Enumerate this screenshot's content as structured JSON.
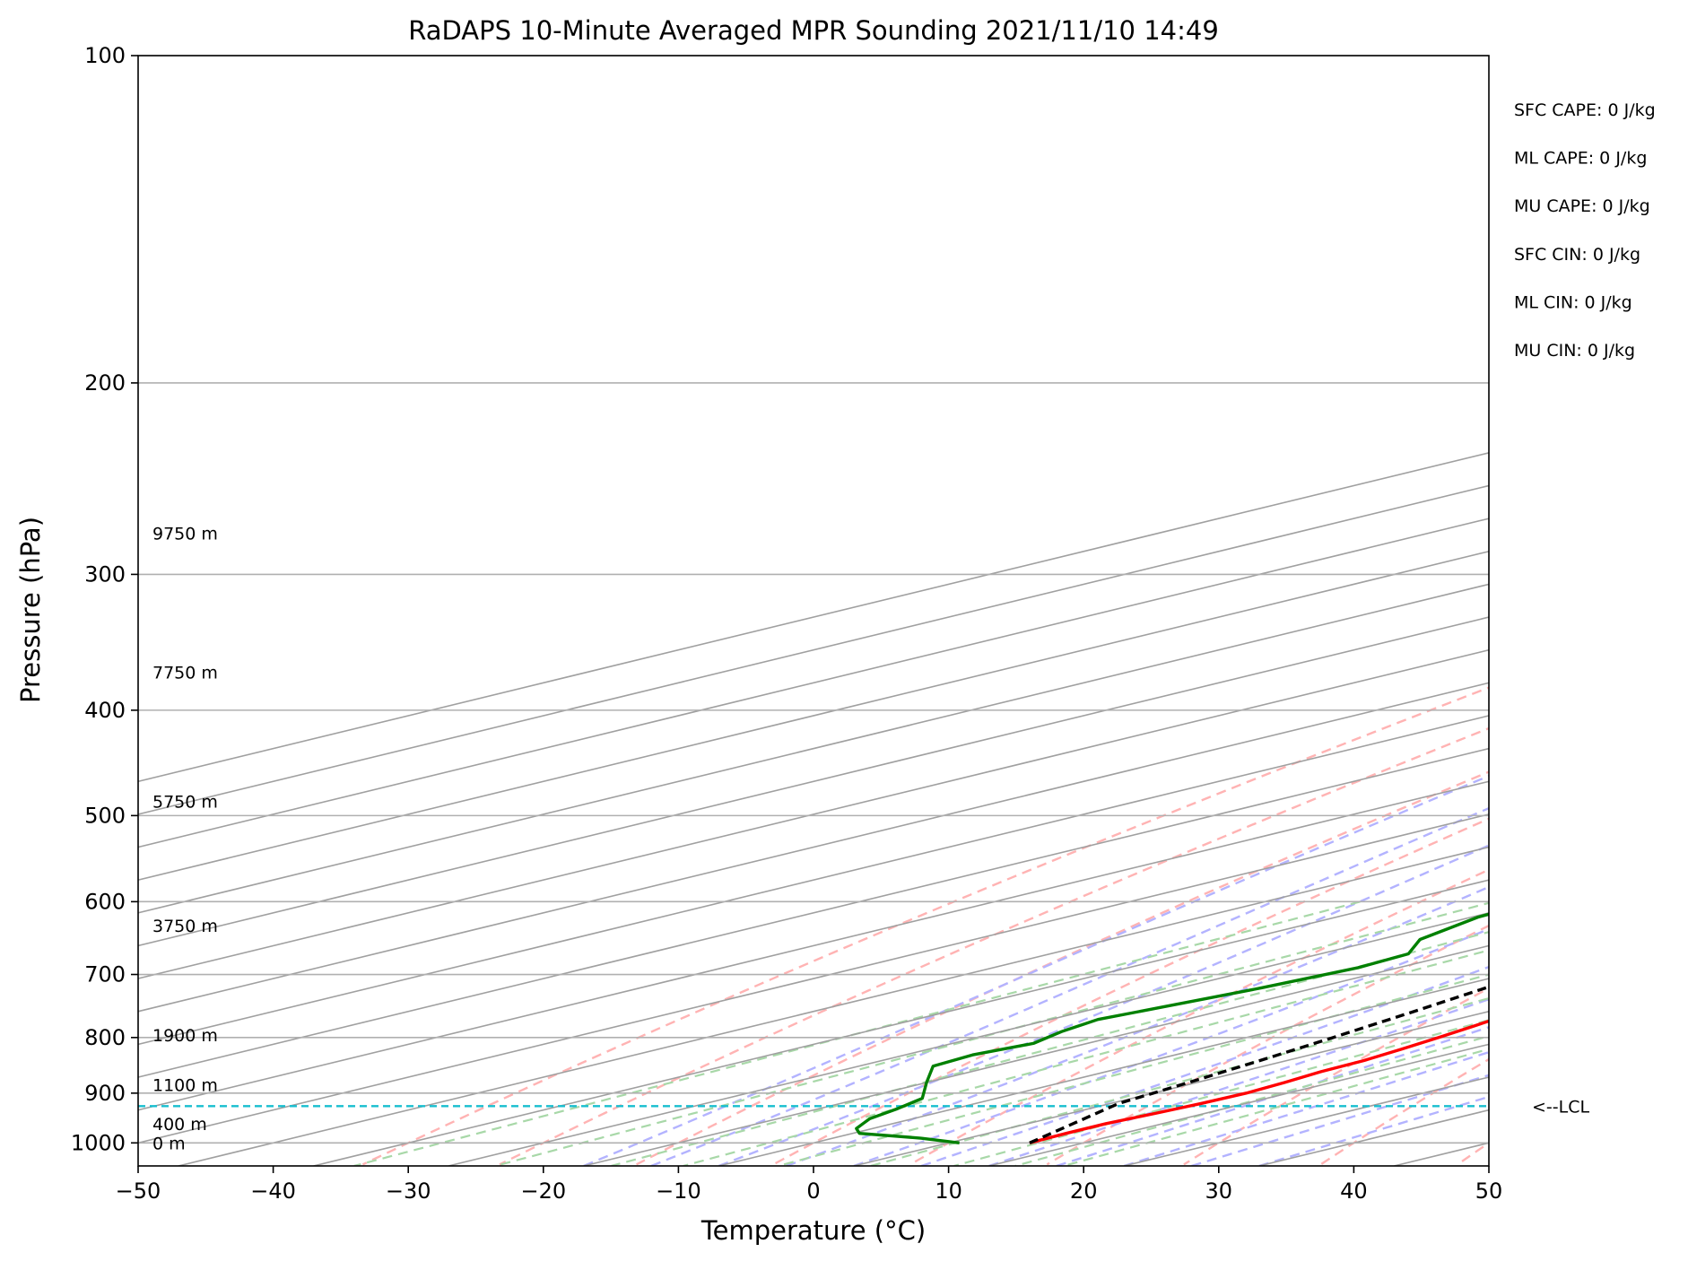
{
  "chart_data": {
    "type": "line",
    "subtype": "skew-t log-p",
    "title": "RaDAPS 10-Minute Averaged MPR Sounding 2021/11/10 14:49",
    "xlabel": "Temperature (°C)",
    "ylabel": "Pressure (hPa)",
    "xlim": [
      -50,
      50
    ],
    "ylim": [
      1050,
      100
    ],
    "y_scale": "log",
    "grid": true,
    "x_ticks": [
      -50,
      -40,
      -30,
      -20,
      -10,
      0,
      10,
      20,
      30,
      40,
      50
    ],
    "x_tick_labels": [
      "−50",
      "−40",
      "−30",
      "−20",
      "−10",
      "0",
      "10",
      "20",
      "30",
      "40",
      "50"
    ],
    "y_ticks": [
      100,
      200,
      300,
      400,
      500,
      600,
      700,
      800,
      900,
      1000
    ],
    "y_tick_labels": [
      "100",
      "200",
      "300",
      "400",
      "500",
      "600",
      "700",
      "800",
      "900",
      "1000"
    ],
    "series": [
      {
        "role": "temperature",
        "color": "#ff0000",
        "points": [
          [
            1000,
            16.0
          ],
          [
            980,
            15.8
          ],
          [
            960,
            15.8
          ],
          [
            940,
            16.3
          ],
          [
            920,
            16.7
          ],
          [
            900,
            16.9
          ],
          [
            880,
            16.5
          ],
          [
            860,
            15.9
          ],
          [
            840,
            15.7
          ],
          [
            820,
            15.0
          ],
          [
            800,
            14.2
          ],
          [
            780,
            13.3
          ],
          [
            760,
            12.3
          ],
          [
            740,
            11.1
          ],
          [
            720,
            10.0
          ],
          [
            700,
            9.2
          ],
          [
            680,
            8.3
          ],
          [
            660,
            7.1
          ],
          [
            640,
            6.0
          ],
          [
            620,
            4.8
          ],
          [
            600,
            3.6
          ],
          [
            580,
            2.2
          ],
          [
            560,
            0.6
          ],
          [
            540,
            -0.8
          ],
          [
            520,
            -2.4
          ],
          [
            500,
            -4.0
          ],
          [
            480,
            -5.6
          ],
          [
            460,
            -7.6
          ],
          [
            440,
            -9.8
          ],
          [
            420,
            -11.7
          ],
          [
            400,
            -13.8
          ],
          [
            380,
            -16.2
          ],
          [
            360,
            -18.7
          ],
          [
            340,
            -21.4
          ],
          [
            320,
            -24.0
          ],
          [
            300,
            -26.6
          ],
          [
            280,
            -29.4
          ],
          [
            265,
            -31.8
          ]
        ]
      },
      {
        "role": "dewpoint",
        "color": "#008000",
        "points": [
          [
            1000,
            10.8
          ],
          [
            990,
            6.5
          ],
          [
            980,
            0.5
          ],
          [
            970,
            -1.2
          ],
          [
            960,
            -2.2
          ],
          [
            950,
            -3.2
          ],
          [
            930,
            -4.2
          ],
          [
            910,
            -5.5
          ],
          [
            880,
            -10.0
          ],
          [
            850,
            -14.5
          ],
          [
            830,
            -15.0
          ],
          [
            810,
            -14.0
          ],
          [
            790,
            -15.5
          ],
          [
            770,
            -16.5
          ],
          [
            750,
            -15.5
          ],
          [
            720,
            -14.0
          ],
          [
            690,
            -13.0
          ],
          [
            670,
            -13.5
          ],
          [
            650,
            -17.0
          ],
          [
            620,
            -19.5
          ],
          [
            600,
            -20.0
          ],
          [
            570,
            -20.5
          ],
          [
            550,
            -19.5
          ],
          [
            530,
            -17.5
          ],
          [
            500,
            -19.0
          ],
          [
            470,
            -19.5
          ],
          [
            450,
            -18.5
          ],
          [
            430,
            -20.5
          ],
          [
            410,
            -23.0
          ],
          [
            400,
            -22.5
          ],
          [
            380,
            -22.3
          ],
          [
            360,
            -22.5
          ],
          [
            340,
            -22.8
          ],
          [
            325,
            -23.2
          ],
          [
            310,
            -25.0
          ],
          [
            300,
            -33.0
          ],
          [
            297,
            -60.0
          ],
          [
            294,
            -80.0
          ]
        ]
      },
      {
        "role": "parcel",
        "color": "#000000",
        "style": "dashed",
        "points": [
          [
            1000,
            16.0
          ],
          [
            920,
            10.6
          ],
          [
            880,
            9.4
          ],
          [
            840,
            8.0
          ],
          [
            800,
            6.4
          ],
          [
            760,
            4.6
          ],
          [
            720,
            2.6
          ],
          [
            680,
            0.5
          ],
          [
            640,
            -1.9
          ],
          [
            600,
            -4.6
          ],
          [
            560,
            -7.6
          ],
          [
            520,
            -10.9
          ],
          [
            480,
            -14.6
          ],
          [
            440,
            -18.9
          ],
          [
            400,
            -23.8
          ],
          [
            360,
            -29.6
          ],
          [
            320,
            -36.3
          ],
          [
            290,
            -42.0
          ],
          [
            270,
            -46.4
          ]
        ]
      }
    ],
    "lcl_pressure": 925,
    "lcl_label": "<--LCL",
    "height_labels": [
      {
        "text": "9750 m",
        "p": 275
      },
      {
        "text": "7750 m",
        "p": 369
      },
      {
        "text": "5750 m",
        "p": 485
      },
      {
        "text": "3750 m",
        "p": 631
      },
      {
        "text": "1900 m",
        "p": 796
      },
      {
        "text": "1100 m",
        "p": 884
      },
      {
        "text": "400 m",
        "p": 960
      },
      {
        "text": "0 m",
        "p": 1000
      }
    ],
    "indices": [
      "SFC CAPE: 0 J/kg",
      "ML CAPE: 0 J/kg",
      "MU CAPE: 0 J/kg",
      "SFC CIN: 0 J/kg",
      "ML CIN: 0 J/kg",
      "MU CIN: 0 J/kg"
    ],
    "colors": {
      "temperature": "#ff0000",
      "dewpoint": "#008000",
      "parcel": "#000000",
      "lcl": "#17becf",
      "dry_adiabat": "#ffb3b3",
      "moist_adiabat": "#b3b3ff",
      "mixing_ratio": "#a8d8a8",
      "isotherm": "#a0a0a0",
      "isobar": "#b0b0b0"
    }
  }
}
